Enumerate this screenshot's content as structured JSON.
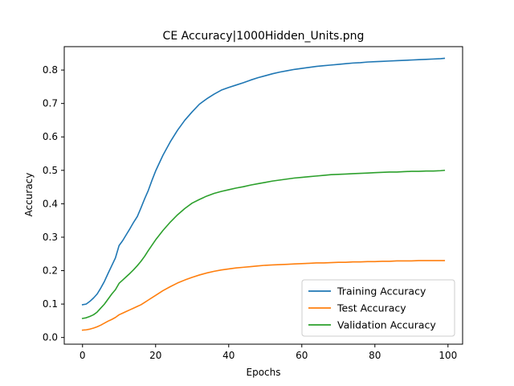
{
  "chart_data": {
    "type": "line",
    "title": "CE Accuracy|1000Hidden_Units.png",
    "xlabel": "Epochs",
    "ylabel": "Accuracy",
    "xlim": [
      -5,
      104
    ],
    "ylim": [
      -0.02,
      0.87
    ],
    "xticks": [
      0,
      20,
      40,
      60,
      80,
      100
    ],
    "yticks": [
      0.0,
      0.1,
      0.2,
      0.3,
      0.4,
      0.5,
      0.6,
      0.7,
      0.8
    ],
    "grid": false,
    "legend_position": "lower-right",
    "x": [
      0,
      1,
      2,
      3,
      4,
      5,
      6,
      7,
      8,
      9,
      10,
      11,
      12,
      13,
      14,
      15,
      16,
      17,
      18,
      19,
      20,
      22,
      24,
      26,
      28,
      30,
      32,
      34,
      36,
      38,
      40,
      42,
      44,
      46,
      48,
      50,
      52,
      54,
      56,
      58,
      60,
      62,
      64,
      66,
      68,
      70,
      72,
      74,
      76,
      78,
      80,
      82,
      84,
      86,
      88,
      90,
      92,
      94,
      96,
      98,
      99
    ],
    "series": [
      {
        "name": "Training Accuracy",
        "color": "#1f77b4",
        "values": [
          0.098,
          0.1,
          0.108,
          0.118,
          0.13,
          0.148,
          0.168,
          0.192,
          0.215,
          0.238,
          0.275,
          0.29,
          0.308,
          0.326,
          0.345,
          0.362,
          0.388,
          0.415,
          0.44,
          0.47,
          0.498,
          0.545,
          0.585,
          0.62,
          0.65,
          0.675,
          0.698,
          0.714,
          0.728,
          0.74,
          0.748,
          0.755,
          0.762,
          0.77,
          0.777,
          0.783,
          0.789,
          0.794,
          0.798,
          0.802,
          0.805,
          0.808,
          0.811,
          0.813,
          0.815,
          0.817,
          0.819,
          0.821,
          0.822,
          0.824,
          0.825,
          0.826,
          0.827,
          0.828,
          0.829,
          0.83,
          0.831,
          0.832,
          0.833,
          0.834,
          0.835
        ]
      },
      {
        "name": "Test Accuracy",
        "color": "#ff7f0e",
        "values": [
          0.022,
          0.023,
          0.025,
          0.028,
          0.032,
          0.037,
          0.043,
          0.049,
          0.054,
          0.06,
          0.068,
          0.073,
          0.078,
          0.083,
          0.088,
          0.093,
          0.098,
          0.105,
          0.112,
          0.119,
          0.126,
          0.14,
          0.152,
          0.163,
          0.172,
          0.18,
          0.187,
          0.193,
          0.198,
          0.202,
          0.205,
          0.208,
          0.21,
          0.212,
          0.214,
          0.216,
          0.217,
          0.218,
          0.219,
          0.22,
          0.221,
          0.222,
          0.223,
          0.223,
          0.224,
          0.225,
          0.225,
          0.226,
          0.226,
          0.227,
          0.227,
          0.228,
          0.228,
          0.229,
          0.229,
          0.229,
          0.23,
          0.23,
          0.23,
          0.23,
          0.23
        ]
      },
      {
        "name": "Validation Accuracy",
        "color": "#2ca02c",
        "values": [
          0.057,
          0.059,
          0.063,
          0.068,
          0.076,
          0.088,
          0.1,
          0.115,
          0.13,
          0.143,
          0.162,
          0.172,
          0.182,
          0.192,
          0.203,
          0.215,
          0.228,
          0.243,
          0.26,
          0.276,
          0.292,
          0.32,
          0.345,
          0.367,
          0.386,
          0.402,
          0.413,
          0.423,
          0.431,
          0.437,
          0.442,
          0.447,
          0.451,
          0.456,
          0.46,
          0.464,
          0.468,
          0.471,
          0.474,
          0.477,
          0.479,
          0.481,
          0.483,
          0.485,
          0.487,
          0.488,
          0.489,
          0.49,
          0.491,
          0.492,
          0.493,
          0.494,
          0.495,
          0.495,
          0.496,
          0.497,
          0.497,
          0.498,
          0.498,
          0.499,
          0.5
        ]
      }
    ]
  }
}
